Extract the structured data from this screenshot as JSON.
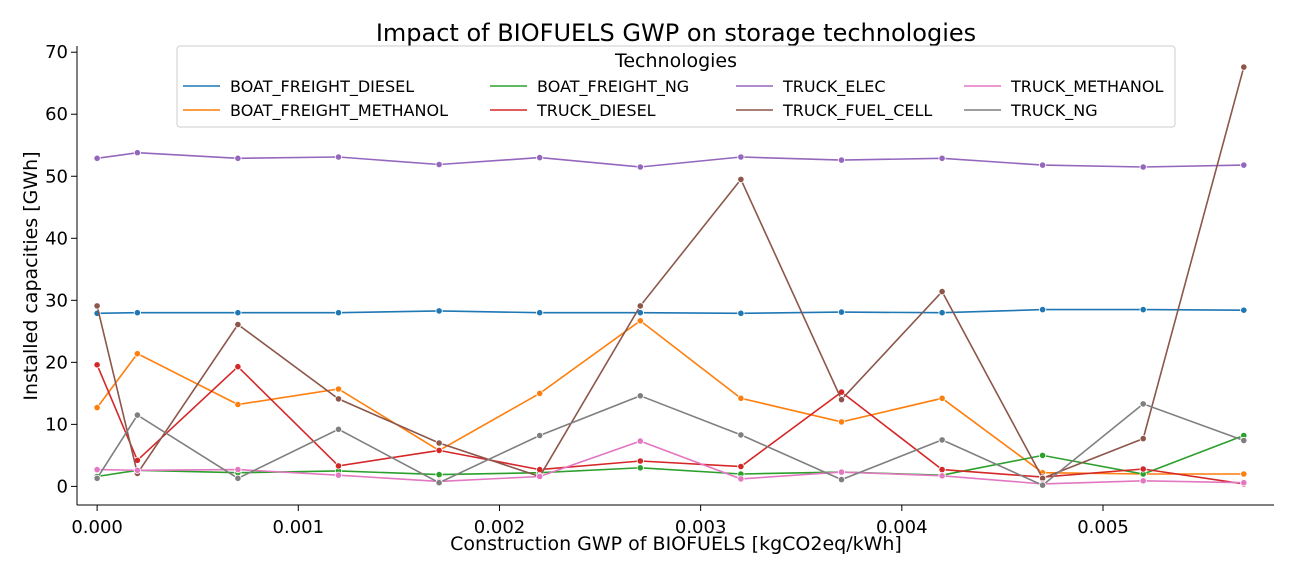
{
  "chart_data": {
    "type": "line",
    "title": "Impact of BIOFUELS GWP on storage technologies",
    "xlabel": "Construction GWP of BIOFUELS [kgCO2eq/kWh]",
    "ylabel": "Installed capacities [GWh]",
    "xlim": [
      -0.0001,
      0.00585
    ],
    "ylim": [
      -3,
      71
    ],
    "x_ticks": [
      0.0,
      0.001,
      0.002,
      0.003,
      0.004,
      0.005
    ],
    "x_tick_labels": [
      "0.000",
      "0.001",
      "0.002",
      "0.003",
      "0.004",
      "0.005"
    ],
    "y_ticks": [
      0,
      10,
      20,
      30,
      40,
      50,
      60,
      70
    ],
    "y_tick_labels": [
      "0",
      "10",
      "20",
      "30",
      "40",
      "50",
      "60",
      "70"
    ],
    "grid": false,
    "legend": {
      "title": "Technologies",
      "placement": "top",
      "columns": 4
    },
    "x": [
      0.0,
      0.0002,
      0.0007,
      0.0012,
      0.0017,
      0.0022,
      0.0027,
      0.0032,
      0.0037,
      0.0042,
      0.0047,
      0.0052,
      0.0057
    ],
    "series": [
      {
        "name": "BOAT_FREIGHT_DIESEL",
        "color": "#1f77b4",
        "values": [
          27.9,
          28.0,
          28.0,
          28.0,
          28.3,
          28.0,
          28.0,
          27.9,
          28.1,
          28.0,
          28.5,
          28.5,
          28.4
        ]
      },
      {
        "name": "BOAT_FREIGHT_METHANOL",
        "color": "#ff7f0e",
        "values": [
          12.7,
          21.4,
          13.2,
          15.7,
          5.8,
          15.0,
          26.7,
          14.2,
          10.4,
          14.2,
          2.2,
          2.0,
          2.0
        ]
      },
      {
        "name": "BOAT_FREIGHT_NG",
        "color": "#2ca02c",
        "values": [
          1.6,
          2.6,
          2.2,
          2.5,
          1.9,
          2.2,
          3.0,
          2.0,
          2.3,
          1.8,
          5.0,
          2.0,
          8.2
        ]
      },
      {
        "name": "TRUCK_DIESEL",
        "color": "#d62728",
        "values": [
          19.6,
          4.2,
          19.3,
          3.3,
          5.8,
          2.7,
          4.1,
          3.2,
          15.2,
          2.7,
          1.5,
          2.8,
          0.4
        ]
      },
      {
        "name": "TRUCK_ELEC",
        "color": "#9467bd",
        "values": [
          52.9,
          53.8,
          52.9,
          53.1,
          51.9,
          53.0,
          51.5,
          53.1,
          52.6,
          52.9,
          51.8,
          51.5,
          51.8
        ]
      },
      {
        "name": "TRUCK_FUEL_CELL",
        "color": "#8c564b",
        "values": [
          29.1,
          2.1,
          26.1,
          14.1,
          7.0,
          1.6,
          29.1,
          49.5,
          14.0,
          31.4,
          1.3,
          7.7,
          67.6
        ]
      },
      {
        "name": "TRUCK_METHANOL",
        "color": "#e377c2",
        "values": [
          2.7,
          2.6,
          2.7,
          1.8,
          0.8,
          1.6,
          7.3,
          1.2,
          2.3,
          1.7,
          0.4,
          0.9,
          0.6
        ]
      },
      {
        "name": "TRUCK_NG",
        "color": "#7f7f7f",
        "values": [
          1.3,
          11.5,
          1.3,
          9.2,
          0.6,
          8.2,
          14.6,
          8.3,
          1.1,
          7.5,
          0.2,
          13.3,
          7.4
        ]
      }
    ]
  }
}
